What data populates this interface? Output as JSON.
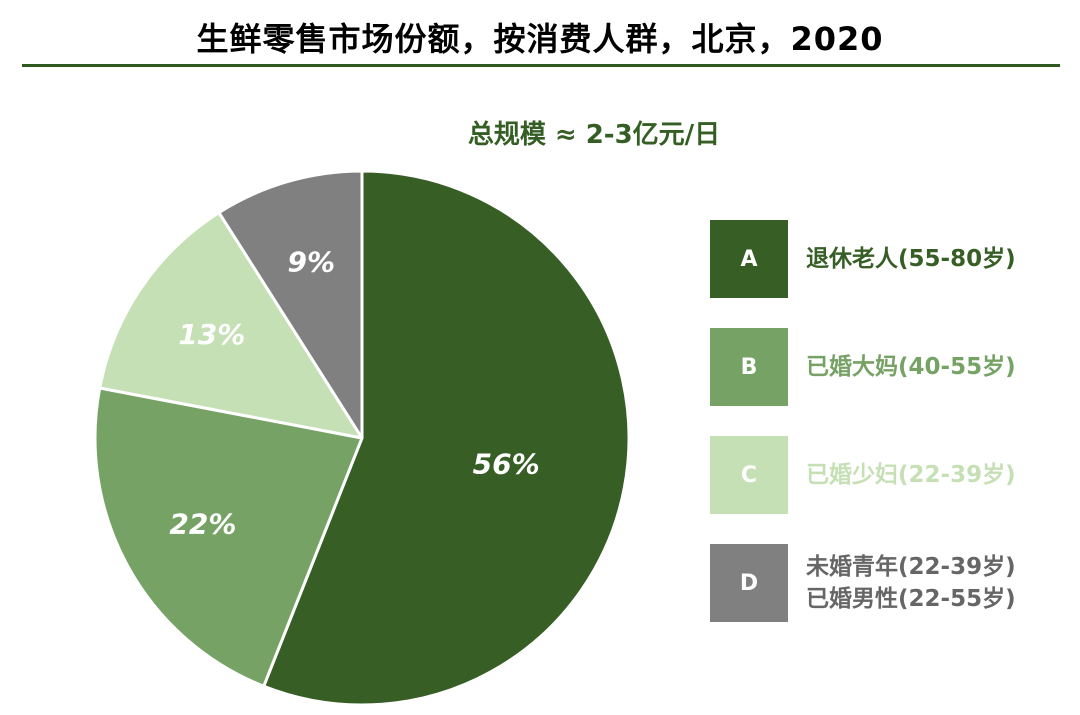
{
  "title": "生鲜零售市场份额，按消费人群，北京，2020",
  "subtitle": "总规模 ≈ 2-3亿元/日",
  "colors": {
    "title_rule": "#2f5a1f",
    "subtitle": "#355e24",
    "A": "#365e25",
    "B": "#76a365",
    "C": "#c6e0b6",
    "D": "#808080"
  },
  "chart_data": {
    "type": "pie",
    "title": "生鲜零售市场份额，按消费人群，北京，2020",
    "subtitle": "总规模 ≈ 2-3亿元/日",
    "unit": "%",
    "slices": [
      {
        "key": "A",
        "label": "退休老人(55-80岁)",
        "value": 56,
        "display": "56%",
        "color": "#365e25"
      },
      {
        "key": "B",
        "label": "已婚大妈(40-55岁)",
        "value": 22,
        "display": "22%",
        "color": "#76a365"
      },
      {
        "key": "C",
        "label": "已婚少妇(22-39岁)",
        "value": 13,
        "display": "13%",
        "color": "#c6e0b6"
      },
      {
        "key": "D",
        "label": "未婚青年(22-39岁) 已婚男性(22-55岁)",
        "value": 9,
        "display": "9%",
        "color": "#808080"
      }
    ],
    "legend_position": "right"
  },
  "legend": {
    "items": [
      {
        "key": "A",
        "lines": [
          "退休老人(55-80岁)"
        ],
        "color": "#365e25",
        "text_color": "#365e25"
      },
      {
        "key": "B",
        "lines": [
          "已婚大妈(40-55岁)"
        ],
        "color": "#76a365",
        "text_color": "#76a365"
      },
      {
        "key": "C",
        "lines": [
          "已婚少妇(22-39岁)"
        ],
        "color": "#c6e0b6",
        "text_color": "#c6e0b6"
      },
      {
        "key": "D",
        "lines": [
          "未婚青年(22-39岁)",
          "已婚男性(22-55岁)"
        ],
        "color": "#808080",
        "text_color": "#666666"
      }
    ]
  }
}
